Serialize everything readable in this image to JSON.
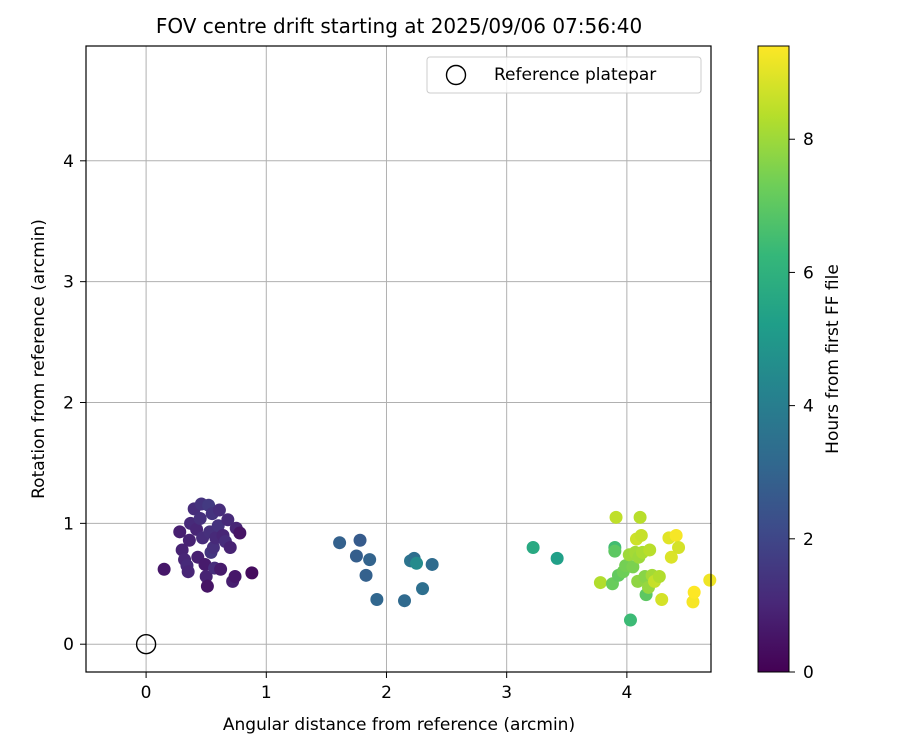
{
  "chart_data": {
    "type": "scatter",
    "title": "FOV centre drift starting at 2025/09/06 07:56:40",
    "xlabel": "Angular distance from reference (arcmin)",
    "ylabel": "Rotation from reference (arcmin)",
    "xlim": [
      -0.5,
      4.7
    ],
    "ylim": [
      -0.23,
      4.95
    ],
    "xticks": [
      0,
      1,
      2,
      3,
      4
    ],
    "yticks": [
      0,
      1,
      2,
      3,
      4
    ],
    "grid": true,
    "legend": {
      "placement": "top-right",
      "entries": [
        "Reference platepar"
      ]
    },
    "reference_point": {
      "label": "Reference platepar",
      "x": 0,
      "y": 0
    },
    "colorbar": {
      "label": "Hours from first FF file",
      "colormap": "viridis",
      "range": [
        0,
        9.4
      ],
      "ticks": [
        0,
        2,
        4,
        6,
        8
      ]
    },
    "points": [
      {
        "x": 0.15,
        "y": 0.62,
        "c": 0.6
      },
      {
        "x": 0.28,
        "y": 0.93,
        "c": 0.8
      },
      {
        "x": 0.3,
        "y": 0.78,
        "c": 0.9
      },
      {
        "x": 0.32,
        "y": 0.7,
        "c": 1.0
      },
      {
        "x": 0.34,
        "y": 0.65,
        "c": 1.1
      },
      {
        "x": 0.35,
        "y": 0.6,
        "c": 1.0
      },
      {
        "x": 0.36,
        "y": 0.86,
        "c": 0.9
      },
      {
        "x": 0.37,
        "y": 1.0,
        "c": 1.1
      },
      {
        "x": 0.4,
        "y": 1.12,
        "c": 1.2
      },
      {
        "x": 0.42,
        "y": 0.95,
        "c": 1.0
      },
      {
        "x": 0.43,
        "y": 0.72,
        "c": 0.8
      },
      {
        "x": 0.45,
        "y": 1.04,
        "c": 1.3
      },
      {
        "x": 0.46,
        "y": 1.16,
        "c": 1.4
      },
      {
        "x": 0.47,
        "y": 0.88,
        "c": 1.2
      },
      {
        "x": 0.49,
        "y": 0.66,
        "c": 0.7
      },
      {
        "x": 0.5,
        "y": 0.56,
        "c": 0.9
      },
      {
        "x": 0.51,
        "y": 0.48,
        "c": 0.5
      },
      {
        "x": 0.52,
        "y": 1.15,
        "c": 1.6
      },
      {
        "x": 0.53,
        "y": 0.93,
        "c": 1.3
      },
      {
        "x": 0.54,
        "y": 0.76,
        "c": 1.5
      },
      {
        "x": 0.55,
        "y": 1.08,
        "c": 1.4
      },
      {
        "x": 0.56,
        "y": 0.8,
        "c": 1.3
      },
      {
        "x": 0.57,
        "y": 0.63,
        "c": 1.2
      },
      {
        "x": 0.58,
        "y": 0.88,
        "c": 1.1
      },
      {
        "x": 0.6,
        "y": 0.98,
        "c": 1.4
      },
      {
        "x": 0.61,
        "y": 1.11,
        "c": 1.2
      },
      {
        "x": 0.62,
        "y": 0.62,
        "c": 0.7
      },
      {
        "x": 0.64,
        "y": 0.9,
        "c": 1.0
      },
      {
        "x": 0.66,
        "y": 0.85,
        "c": 1.2
      },
      {
        "x": 0.68,
        "y": 1.03,
        "c": 1.1
      },
      {
        "x": 0.7,
        "y": 0.8,
        "c": 0.9
      },
      {
        "x": 0.72,
        "y": 0.52,
        "c": 0.8
      },
      {
        "x": 0.74,
        "y": 0.56,
        "c": 0.6
      },
      {
        "x": 0.75,
        "y": 0.96,
        "c": 1.0
      },
      {
        "x": 0.78,
        "y": 0.92,
        "c": 0.5
      },
      {
        "x": 0.88,
        "y": 0.59,
        "c": 0.3
      },
      {
        "x": 1.61,
        "y": 0.84,
        "c": 2.9
      },
      {
        "x": 1.75,
        "y": 0.73,
        "c": 2.8
      },
      {
        "x": 1.78,
        "y": 0.86,
        "c": 2.7
      },
      {
        "x": 1.83,
        "y": 0.57,
        "c": 2.9
      },
      {
        "x": 1.86,
        "y": 0.7,
        "c": 3.0
      },
      {
        "x": 1.92,
        "y": 0.37,
        "c": 3.1
      },
      {
        "x": 2.15,
        "y": 0.36,
        "c": 3.2
      },
      {
        "x": 2.2,
        "y": 0.69,
        "c": 3.6
      },
      {
        "x": 2.23,
        "y": 0.71,
        "c": 3.4
      },
      {
        "x": 2.25,
        "y": 0.67,
        "c": 4.5
      },
      {
        "x": 2.3,
        "y": 0.46,
        "c": 3.4
      },
      {
        "x": 2.38,
        "y": 0.66,
        "c": 3.3
      },
      {
        "x": 3.22,
        "y": 0.8,
        "c": 5.7
      },
      {
        "x": 3.42,
        "y": 0.71,
        "c": 5.3
      },
      {
        "x": 3.78,
        "y": 0.51,
        "c": 8.3
      },
      {
        "x": 3.88,
        "y": 0.5,
        "c": 7.2
      },
      {
        "x": 3.9,
        "y": 0.8,
        "c": 6.5
      },
      {
        "x": 3.9,
        "y": 0.77,
        "c": 7.0
      },
      {
        "x": 3.91,
        "y": 1.05,
        "c": 8.5
      },
      {
        "x": 3.93,
        "y": 0.57,
        "c": 7.1
      },
      {
        "x": 3.97,
        "y": 0.6,
        "c": 7.3
      },
      {
        "x": 3.99,
        "y": 0.65,
        "c": 7.4
      },
      {
        "x": 4.02,
        "y": 0.74,
        "c": 8.0
      },
      {
        "x": 4.03,
        "y": 0.2,
        "c": 6.4
      },
      {
        "x": 4.05,
        "y": 0.64,
        "c": 7.5
      },
      {
        "x": 4.07,
        "y": 0.76,
        "c": 8.1
      },
      {
        "x": 4.08,
        "y": 0.87,
        "c": 8.7
      },
      {
        "x": 4.09,
        "y": 0.52,
        "c": 7.8
      },
      {
        "x": 4.1,
        "y": 0.72,
        "c": 8.0
      },
      {
        "x": 4.11,
        "y": 1.05,
        "c": 8.4
      },
      {
        "x": 4.12,
        "y": 0.9,
        "c": 8.6
      },
      {
        "x": 4.13,
        "y": 0.76,
        "c": 8.2
      },
      {
        "x": 4.15,
        "y": 0.56,
        "c": 7.7
      },
      {
        "x": 4.16,
        "y": 0.41,
        "c": 7.0
      },
      {
        "x": 4.18,
        "y": 0.47,
        "c": 7.9
      },
      {
        "x": 4.19,
        "y": 0.78,
        "c": 8.4
      },
      {
        "x": 4.21,
        "y": 0.57,
        "c": 8.1
      },
      {
        "x": 4.23,
        "y": 0.52,
        "c": 8.6
      },
      {
        "x": 4.27,
        "y": 0.56,
        "c": 8.3
      },
      {
        "x": 4.29,
        "y": 0.37,
        "c": 8.8
      },
      {
        "x": 4.35,
        "y": 0.88,
        "c": 9.0
      },
      {
        "x": 4.37,
        "y": 0.72,
        "c": 8.9
      },
      {
        "x": 4.41,
        "y": 0.9,
        "c": 9.3
      },
      {
        "x": 4.43,
        "y": 0.8,
        "c": 8.8
      },
      {
        "x": 4.55,
        "y": 0.35,
        "c": 9.3
      },
      {
        "x": 4.56,
        "y": 0.43,
        "c": 9.4
      },
      {
        "x": 4.69,
        "y": 0.53,
        "c": 9.2
      }
    ]
  }
}
